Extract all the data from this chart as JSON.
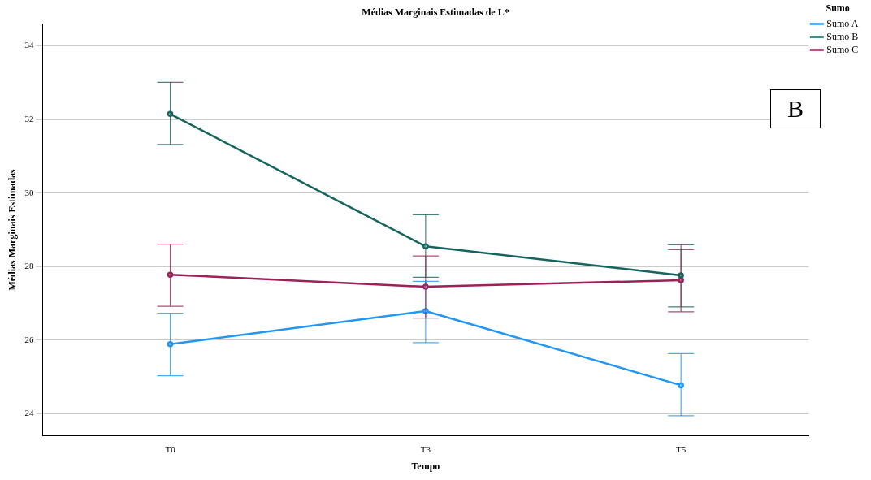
{
  "chart_data": {
    "type": "line",
    "title": "Médias Marginais Estimadas de L*",
    "xlabel": "Tempo",
    "ylabel": "Médias Marginais Estimadas",
    "legend_title": "Sumo",
    "annotations": [
      "B"
    ],
    "categories": [
      "T0",
      "T3",
      "T5"
    ],
    "series": [
      {
        "name": "Sumo A",
        "color": "#2196f3",
        "values": [
          25.89,
          26.79,
          24.77
        ],
        "errors": [
          [
            25.03,
            26.73
          ],
          [
            25.93,
            27.6
          ],
          [
            23.94,
            25.63
          ]
        ]
      },
      {
        "name": "Sumo B",
        "color": "#14655e",
        "values": [
          32.15,
          28.55,
          27.76
        ],
        "errors": [
          [
            31.32,
            33.01
          ],
          [
            27.71,
            29.41
          ],
          [
            26.9,
            28.59
          ]
        ]
      },
      {
        "name": "Sumo C",
        "color": "#9c2158",
        "values": [
          27.78,
          27.45,
          27.63
        ],
        "errors": [
          [
            26.92,
            28.61
          ],
          [
            26.6,
            28.29
          ],
          [
            26.77,
            28.46
          ]
        ]
      }
    ],
    "ylim": [
      23.4,
      34.6
    ],
    "yticks": [
      24,
      26,
      28,
      30,
      32,
      34
    ],
    "grid": "y",
    "legend": "top right",
    "marker": "circle",
    "line_style": "solid"
  }
}
